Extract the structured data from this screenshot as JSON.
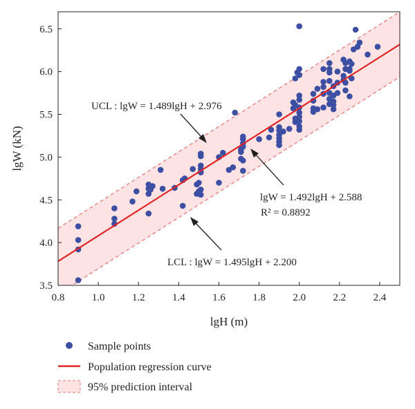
{
  "chart_data": {
    "type": "scatter",
    "xlabel": "lgH (m)",
    "ylabel": "lgW (kN)",
    "xlim": [
      0.8,
      2.5
    ],
    "ylim": [
      3.5,
      6.7
    ],
    "x_ticks": [
      "0.8",
      "1.0",
      "1.2",
      "1.4",
      "1.6",
      "1.8",
      "2.0",
      "2.2",
      "2.4"
    ],
    "y_ticks": [
      "3.5",
      "4.0",
      "4.5",
      "5.0",
      "5.5",
      "6.0",
      "6.5"
    ],
    "grid": false,
    "legend_position": "bottom",
    "colors": {
      "points": "#3d4fa3",
      "regression": "#e02424",
      "band_fill": "#fde3e3",
      "band_edge": "#ec6f6f",
      "axis": "#231f20"
    },
    "regression": {
      "slope": 1.492,
      "intercept": 2.588
    },
    "ucl": {
      "slope": 1.489,
      "intercept": 2.976
    },
    "lcl": {
      "slope": 1.495,
      "intercept": 2.2
    },
    "annotations": {
      "ucl": "UCL : lgW = 1.489lgH + 2.976",
      "fit": "lgW = 1.492lgH + 2.588",
      "r2": "R² = 0.8892",
      "lcl": "LCL : lgW = 1.495lgH + 2.200"
    },
    "legend": [
      {
        "key": "points",
        "label": "Sample points"
      },
      {
        "key": "regression",
        "label": "Population regression curve"
      },
      {
        "key": "band",
        "label": "95% prediction interval"
      }
    ],
    "series": [
      {
        "name": "Sample points",
        "points": [
          [
            0.9,
            3.56
          ],
          [
            0.9,
            3.92
          ],
          [
            0.9,
            4.03
          ],
          [
            0.9,
            4.19
          ],
          [
            1.08,
            4.22
          ],
          [
            1.08,
            4.28
          ],
          [
            1.08,
            4.4
          ],
          [
            1.17,
            4.48
          ],
          [
            1.19,
            4.6
          ],
          [
            1.25,
            4.34
          ],
          [
            1.25,
            4.57
          ],
          [
            1.25,
            4.63
          ],
          [
            1.25,
            4.68
          ],
          [
            1.26,
            4.62
          ],
          [
            1.27,
            4.66
          ],
          [
            1.31,
            4.85
          ],
          [
            1.32,
            4.63
          ],
          [
            1.38,
            4.64
          ],
          [
            1.42,
            4.43
          ],
          [
            1.42,
            4.73
          ],
          [
            1.43,
            4.75
          ],
          [
            1.47,
            4.86
          ],
          [
            1.49,
            4.57
          ],
          [
            1.49,
            4.68
          ],
          [
            1.5,
            4.7
          ],
          [
            1.5,
            4.6
          ],
          [
            1.51,
            4.56
          ],
          [
            1.51,
            4.62
          ],
          [
            1.51,
            4.82
          ],
          [
            1.51,
            4.86
          ],
          [
            1.51,
            4.9
          ],
          [
            1.51,
            5.01
          ],
          [
            1.51,
            5.04
          ],
          [
            1.6,
            4.7
          ],
          [
            1.6,
            5.0
          ],
          [
            1.62,
            5.05
          ],
          [
            1.65,
            4.85
          ],
          [
            1.67,
            4.88
          ],
          [
            1.68,
            5.52
          ],
          [
            1.71,
            4.98
          ],
          [
            1.71,
            5.06
          ],
          [
            1.71,
            5.09
          ],
          [
            1.72,
            4.84
          ],
          [
            1.72,
            4.96
          ],
          [
            1.72,
            5.12
          ],
          [
            1.72,
            5.16
          ],
          [
            1.72,
            5.21
          ],
          [
            1.72,
            5.24
          ],
          [
            1.8,
            5.21
          ],
          [
            1.85,
            5.23
          ],
          [
            1.86,
            5.32
          ],
          [
            1.9,
            5.14
          ],
          [
            1.9,
            5.18
          ],
          [
            1.9,
            5.22
          ],
          [
            1.9,
            5.26
          ],
          [
            1.9,
            5.31
          ],
          [
            1.9,
            5.35
          ],
          [
            1.9,
            5.5
          ],
          [
            1.92,
            5.3
          ],
          [
            1.95,
            5.33
          ],
          [
            1.97,
            5.57
          ],
          [
            1.97,
            5.64
          ],
          [
            1.98,
            5.41
          ],
          [
            1.98,
            5.45
          ],
          [
            1.98,
            5.61
          ],
          [
            1.98,
            5.92
          ],
          [
            1.99,
            5.99
          ],
          [
            2.0,
            5.32
          ],
          [
            2.0,
            5.36
          ],
          [
            2.0,
            5.42
          ],
          [
            2.0,
            5.47
          ],
          [
            2.0,
            5.52
          ],
          [
            2.0,
            5.58
          ],
          [
            2.0,
            5.67
          ],
          [
            2.0,
            5.72
          ],
          [
            2.0,
            5.96
          ],
          [
            2.0,
            6.03
          ],
          [
            2.0,
            6.53
          ],
          [
            2.07,
            5.53
          ],
          [
            2.07,
            5.57
          ],
          [
            2.07,
            5.66
          ],
          [
            2.07,
            5.74
          ],
          [
            2.09,
            5.56
          ],
          [
            2.09,
            5.8
          ],
          [
            2.12,
            5.58
          ],
          [
            2.12,
            5.74
          ],
          [
            2.12,
            5.82
          ],
          [
            2.12,
            5.88
          ],
          [
            2.12,
            6.03
          ],
          [
            2.15,
            5.62
          ],
          [
            2.15,
            5.68
          ],
          [
            2.15,
            5.75
          ],
          [
            2.15,
            5.89
          ],
          [
            2.15,
            5.99
          ],
          [
            2.15,
            6.03
          ],
          [
            2.15,
            6.1
          ],
          [
            2.17,
            5.56
          ],
          [
            2.17,
            5.61
          ],
          [
            2.17,
            5.65
          ],
          [
            2.17,
            5.72
          ],
          [
            2.17,
            5.83
          ],
          [
            2.19,
            5.75
          ],
          [
            2.19,
            5.87
          ],
          [
            2.19,
            6.0
          ],
          [
            2.22,
            5.9
          ],
          [
            2.22,
            5.95
          ],
          [
            2.22,
            6.14
          ],
          [
            2.23,
            5.78
          ],
          [
            2.23,
            5.87
          ],
          [
            2.23,
            6.03
          ],
          [
            2.23,
            6.1
          ],
          [
            2.25,
            5.71
          ],
          [
            2.25,
            6.01
          ],
          [
            2.25,
            6.03
          ],
          [
            2.25,
            6.12
          ],
          [
            2.26,
            5.92
          ],
          [
            2.26,
            6.09
          ],
          [
            2.27,
            6.26
          ],
          [
            2.28,
            6.49
          ],
          [
            2.29,
            6.29
          ],
          [
            2.3,
            6.34
          ],
          [
            2.34,
            6.2
          ],
          [
            2.39,
            6.29
          ]
        ]
      }
    ]
  }
}
